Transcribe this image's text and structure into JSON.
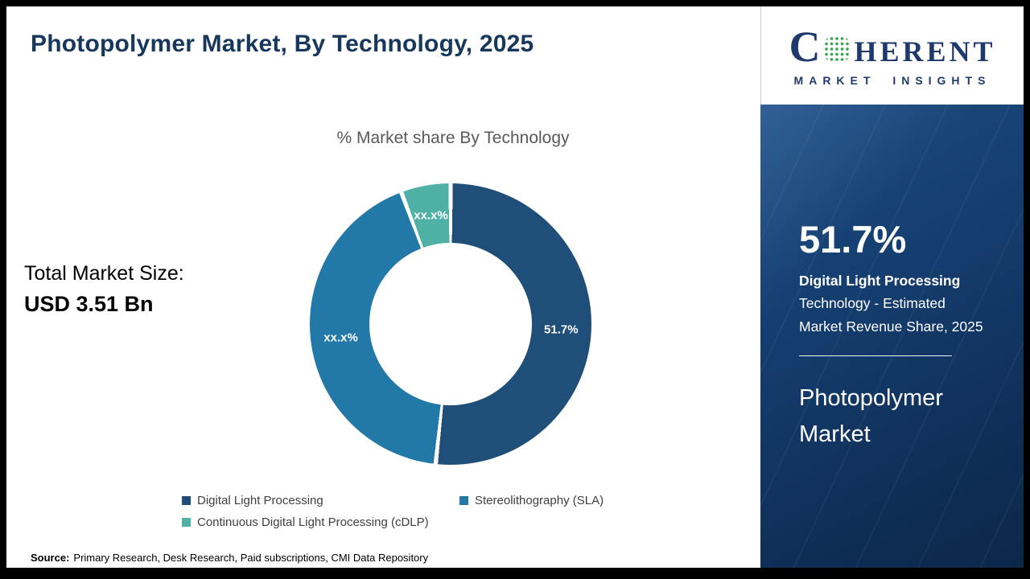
{
  "header": {
    "title": "Photopolymer Market, By Technology, 2025"
  },
  "logo": {
    "letter_c": "C",
    "letters_rest": "HERENT",
    "tagline": "MARKET INSIGHTS"
  },
  "chart_data": {
    "type": "pie",
    "style": "donut",
    "title": "% Market share By Technology",
    "legend_position": "bottom",
    "segments": [
      {
        "label": "Digital Light Processing",
        "value": 51.7,
        "display_label": "51.7%",
        "color": "#1f4e79"
      },
      {
        "label": "Stereolithography (SLA)",
        "value": 42.6,
        "display_label": "xx.x%",
        "color": "#2279a8"
      },
      {
        "label": "Continuous Digital Light Processing (cDLP)",
        "value": 5.7,
        "display_label": "xx.x%",
        "color": "#4fb0a5"
      }
    ]
  },
  "total": {
    "label": "Total Market Size:",
    "value": "USD 3.51 Bn"
  },
  "source": {
    "label": "Source:",
    "text": "Primary Research, Desk Research, Paid subscriptions, CMI Data Repository"
  },
  "sidebar": {
    "stat_value": "51.7%",
    "stat_bold": "Digital Light Processing",
    "stat_rest": "Technology - Estimated Market Revenue Share, 2025",
    "market_name": "Photopolymer Market"
  }
}
